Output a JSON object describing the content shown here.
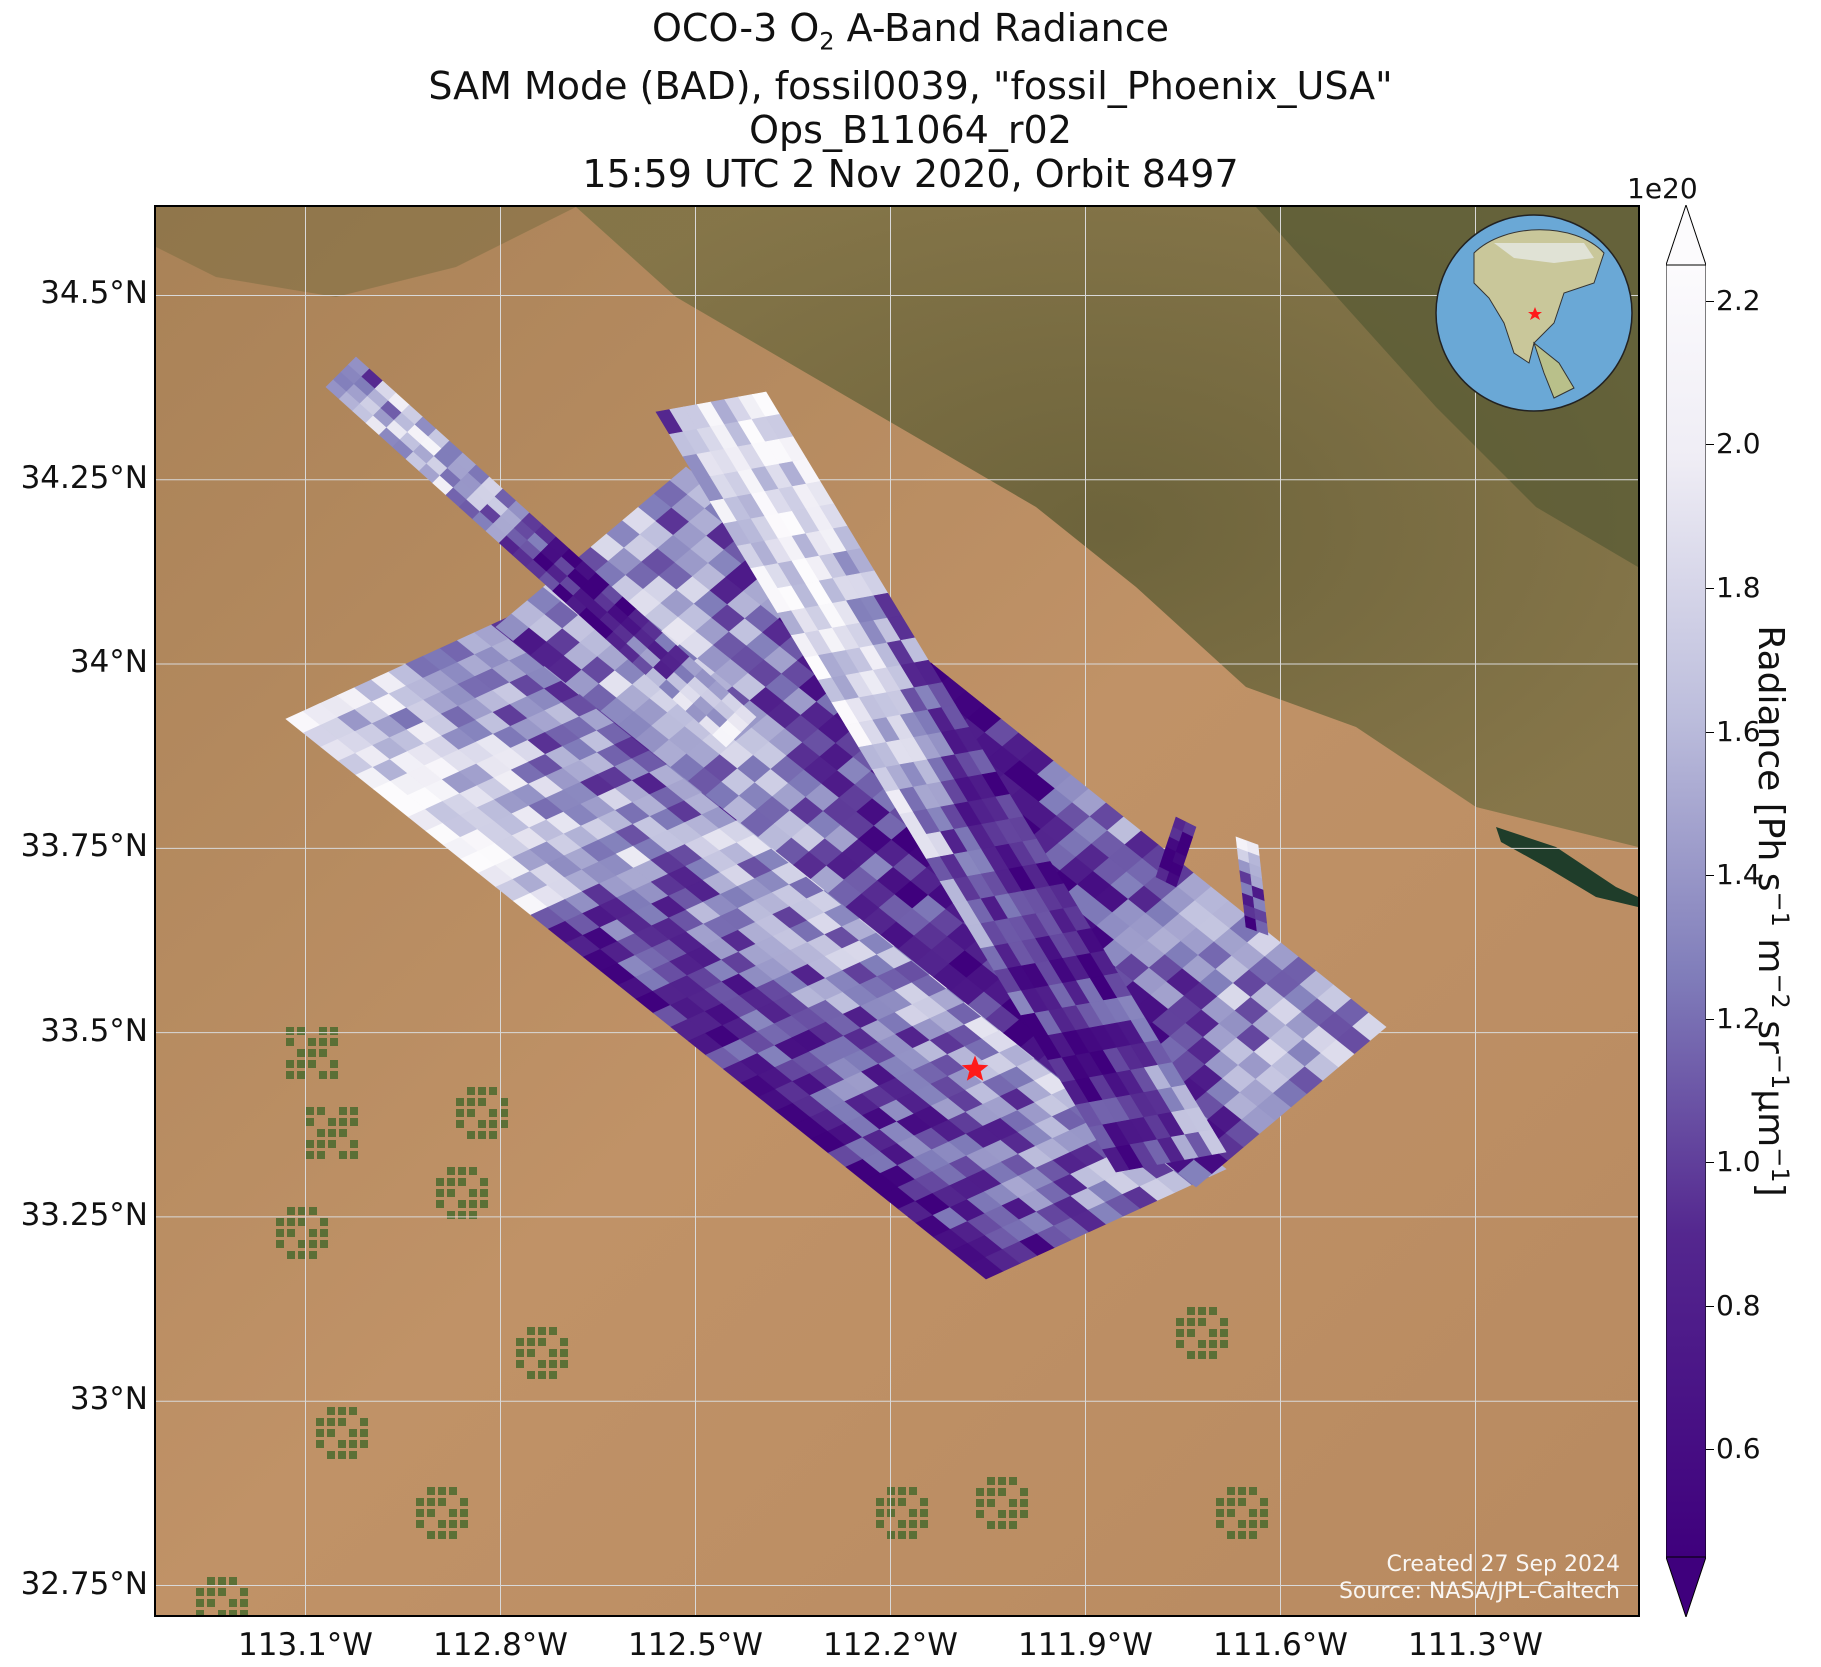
{
  "title": {
    "line1_prefix": "OCO-3 O",
    "line1_sub": "2",
    "line1_suffix": " A-Band Radiance",
    "line2": "SAM Mode (BAD), fossil0039, \"fossil_Phoenix_USA\"",
    "line3": "Ops_B11064_r02",
    "line4": "15:59 UTC 2 Nov 2020, Orbit 8497"
  },
  "map": {
    "lon_range": [
      -113.33,
      -111.05
    ],
    "lat_range": [
      32.71,
      34.62
    ],
    "lat_ticks": [
      {
        "value": 34.5,
        "label": "34.5°N"
      },
      {
        "value": 34.25,
        "label": "34.25°N"
      },
      {
        "value": 34.0,
        "label": "34°N"
      },
      {
        "value": 33.75,
        "label": "33.75°N"
      },
      {
        "value": 33.5,
        "label": "33.5°N"
      },
      {
        "value": 33.25,
        "label": "33.25°N"
      },
      {
        "value": 33.0,
        "label": "33°N"
      },
      {
        "value": 32.75,
        "label": "32.75°N"
      }
    ],
    "lon_ticks": [
      {
        "value": -113.1,
        "label": "113.1°W"
      },
      {
        "value": -112.8,
        "label": "112.8°W"
      },
      {
        "value": -112.5,
        "label": "112.5°W"
      },
      {
        "value": -112.2,
        "label": "112.2°W"
      },
      {
        "value": -111.9,
        "label": "111.9°W"
      },
      {
        "value": -111.6,
        "label": "111.6°W"
      },
      {
        "value": -111.3,
        "label": "111.3°W"
      }
    ],
    "target": {
      "name": "fossil_Phoenix_USA",
      "lon": -112.07,
      "lat": 33.45,
      "marker": "red-star"
    },
    "basemap_colors": {
      "desert": "#b58a5e",
      "mountains": "#6f6a3e",
      "water": "#1f3d2a",
      "fields": "#4a6a2e"
    },
    "grid": true
  },
  "colorbar": {
    "label": "Radiance [Ph s",
    "label_full": "Radiance [Ph s⁻¹ m⁻² sr⁻¹μm⁻¹]",
    "exponent": "1e20",
    "range": [
      0.45,
      2.25
    ],
    "extend": "both",
    "colormap": "Purples_r",
    "ticks": [
      {
        "value": 2.2,
        "label": "2.2"
      },
      {
        "value": 2.0,
        "label": "2.0"
      },
      {
        "value": 1.8,
        "label": "1.8"
      },
      {
        "value": 1.6,
        "label": "1.6"
      },
      {
        "value": 1.4,
        "label": "1.4"
      },
      {
        "value": 1.2,
        "label": "1.2"
      },
      {
        "value": 1.0,
        "label": "1.0"
      },
      {
        "value": 0.8,
        "label": "0.8"
      },
      {
        "value": 0.6,
        "label": "0.6"
      }
    ],
    "colors": {
      "low": "#3f007d",
      "mid": "#807dba",
      "high": "#fcfbfd"
    }
  },
  "credit": {
    "line1": "Created 27 Sep 2024",
    "line2": "Source: NASA/JPL-Caltech"
  },
  "inset_globe": {
    "icon": "globe-icon",
    "marker": "red-star",
    "region": "North America"
  }
}
